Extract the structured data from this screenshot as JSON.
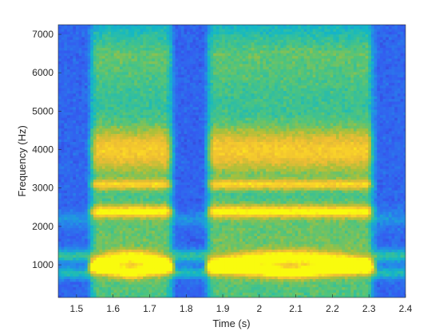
{
  "chart_data": {
    "type": "heatmap",
    "title": "",
    "xlabel": "Time (s)",
    "ylabel": "Frequency (Hz)",
    "xlim": [
      1.45,
      2.4
    ],
    "ylim": [
      150,
      7250
    ],
    "xticks": [
      1.5,
      1.6,
      1.7,
      1.8,
      1.9,
      2.0,
      2.1,
      2.2,
      2.3,
      2.4
    ],
    "xtick_labels": [
      "1.5",
      "1.6",
      "1.7",
      "1.8",
      "1.9",
      "2",
      "2.1",
      "2.2",
      "2.3",
      "2.4"
    ],
    "yticks": [
      1000,
      2000,
      3000,
      4000,
      5000,
      6000,
      7000
    ],
    "ytick_labels": [
      "1000",
      "2000",
      "3000",
      "4000",
      "5000",
      "6000",
      "7000"
    ],
    "colormap": "parula",
    "colors": {
      "low": "#3e26a8",
      "mid_low": "#2e7ff5",
      "mid": "#1cbbb4",
      "mid_high": "#a8c03a",
      "high": "#f4c52c",
      "peak": "#f9fb0e"
    },
    "segments": [
      {
        "start": 1.54,
        "end": 1.76
      },
      {
        "start": 1.86,
        "end": 2.31
      }
    ],
    "formant_bands_hz": [
      800,
      1200,
      2400,
      3100,
      4000
    ],
    "grid": false,
    "legend": "none"
  }
}
